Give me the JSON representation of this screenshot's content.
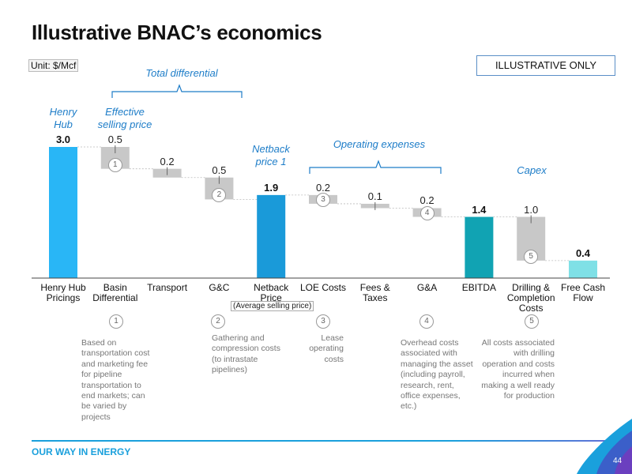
{
  "title": "Illustrative BNAC’s economics",
  "unit": "Unit: $/Mcf",
  "illustrative_label": "ILLUSTRATIVE ONLY",
  "annotations": {
    "total_differential": "Total differential",
    "henry_hub": "Henry Hub",
    "effective_selling_price": "Effective selling price",
    "netback_price": "Netback price 1",
    "operating_expenses": "Operating expenses",
    "capex": "Capex",
    "average_selling_price": "(Average selling price)"
  },
  "chart_data": {
    "type": "bar",
    "subtype": "waterfall",
    "title": "",
    "xlabel": "",
    "ylabel": "",
    "ylim": [
      0,
      3.0
    ],
    "grid": false,
    "categories": [
      "Henry Hub Pricings",
      "Basin Differential",
      "Transport",
      "G&C",
      "Netback Price",
      "LOE Costs",
      "Fees & Taxes",
      "G&A",
      "EBITDA",
      "Drilling & Completion Costs",
      "Free Cash Flow"
    ],
    "values": [
      3.0,
      0.5,
      0.2,
      0.5,
      1.9,
      0.2,
      0.1,
      0.2,
      1.4,
      1.0,
      0.4
    ],
    "labels": [
      "3.0",
      "0.5",
      "0.2",
      "0.5",
      "1.9",
      "0.2",
      "0.1",
      "0.2",
      "1.4",
      "1.0",
      "0.4"
    ],
    "kinds": [
      "total",
      "decrease",
      "decrease",
      "decrease",
      "total",
      "decrease",
      "decrease",
      "decrease",
      "total",
      "decrease",
      "total"
    ],
    "badges": [
      "",
      "1",
      "",
      "2",
      "",
      "3",
      "",
      "4",
      "",
      "5",
      ""
    ],
    "colors": {
      "Henry Hub Pricings": "#29b6f6",
      "Netback Price": "#1a9ad9",
      "EBITDA": "#11a3b3",
      "Free Cash Flow": "#7fe0e6",
      "decrease": "#c8c8c8"
    }
  },
  "notes": [
    {
      "num": "1",
      "text": "Based on transportation cost and marketing fee for pipeline transportation to end markets; can be varied by projects"
    },
    {
      "num": "2",
      "text": "Gathering and compression costs (to intrastate pipelines)"
    },
    {
      "num": "3",
      "text": "Lease operating costs"
    },
    {
      "num": "4",
      "text": "Overhead costs associated with managing the asset (including payroll, research, rent, office expenses, etc.)"
    },
    {
      "num": "5",
      "text": "All costs associated with drilling operation and costs incurred when making a well ready for production"
    }
  ],
  "footer": {
    "tagline": "OUR WAY IN ENERGY",
    "page_number": "44"
  }
}
